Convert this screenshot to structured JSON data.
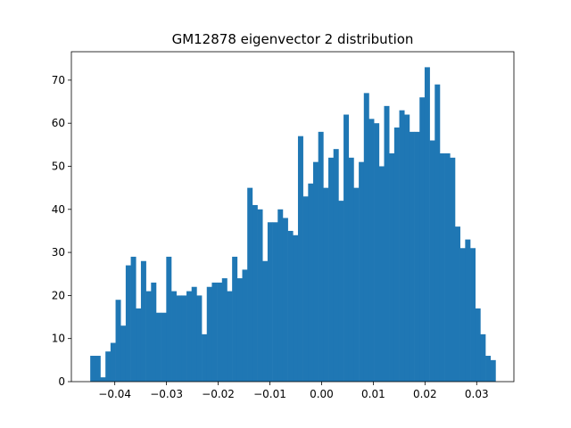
{
  "chart_data": {
    "type": "bar",
    "title": "GM12878 eigenvector 2 distribution",
    "xlabel": "",
    "ylabel": "",
    "xlim": [
      -0.0484,
      0.0372
    ],
    "ylim": [
      0,
      76.6
    ],
    "bin_start": -0.04475,
    "bin_width": 0.00098,
    "values": [
      6,
      6,
      1,
      7,
      9,
      19,
      13,
      27,
      29,
      17,
      28,
      21,
      23,
      16,
      16,
      29,
      21,
      20,
      20,
      21,
      22,
      20,
      11,
      22,
      23,
      23,
      24,
      21,
      29,
      24,
      26,
      45,
      41,
      40,
      28,
      37,
      37,
      40,
      38,
      35,
      34,
      57,
      43,
      46,
      51,
      58,
      45,
      52,
      54,
      42,
      62,
      52,
      45,
      51,
      67,
      61,
      60,
      50,
      64,
      53,
      59,
      63,
      62,
      58,
      58,
      66,
      73,
      56,
      69,
      53,
      53,
      52,
      36,
      31,
      33,
      31,
      17,
      11,
      6,
      5
    ],
    "x_ticks": [
      -0.04,
      -0.03,
      -0.02,
      -0.01,
      0.0,
      0.01,
      0.02,
      0.03
    ],
    "x_tick_labels": [
      "−0.04",
      "−0.03",
      "−0.02",
      "−0.01",
      "0.00",
      "0.01",
      "0.02",
      "0.03"
    ],
    "y_ticks": [
      0,
      10,
      20,
      30,
      40,
      50,
      60,
      70
    ],
    "y_tick_labels": [
      "0",
      "10",
      "20",
      "30",
      "40",
      "50",
      "60",
      "70"
    ],
    "grid": false,
    "legend": "none",
    "bar_color": "#1f77b4"
  }
}
